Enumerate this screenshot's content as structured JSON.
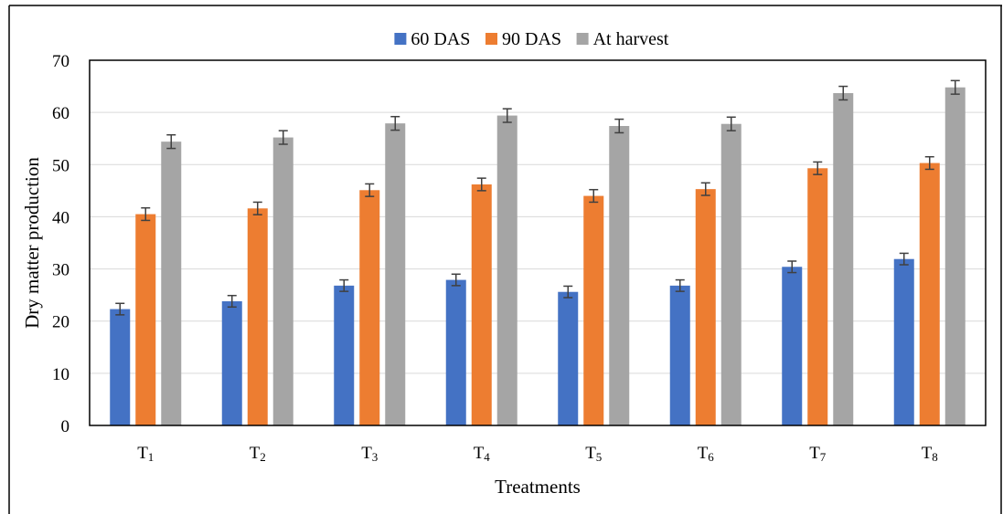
{
  "chart_data": {
    "type": "bar",
    "title": "",
    "xlabel": "Treatments",
    "ylabel": "Dry matter production",
    "ylim": [
      0,
      70
    ],
    "yticks": [
      0,
      10,
      20,
      30,
      40,
      50,
      60,
      70
    ],
    "grid": true,
    "legend_position": "top",
    "categories": [
      {
        "base": "T",
        "sub": "1"
      },
      {
        "base": "T",
        "sub": "2"
      },
      {
        "base": "T",
        "sub": "3"
      },
      {
        "base": "T",
        "sub": "4"
      },
      {
        "base": "T",
        "sub": "5"
      },
      {
        "base": "T",
        "sub": "6"
      },
      {
        "base": "T",
        "sub": "7"
      },
      {
        "base": "T",
        "sub": "8"
      }
    ],
    "series": [
      {
        "name": "60 DAS",
        "color": "#4472C4",
        "values": [
          22.3,
          23.8,
          26.8,
          27.9,
          25.6,
          26.8,
          30.4,
          31.9
        ],
        "errors": [
          1.1,
          1.1,
          1.1,
          1.1,
          1.1,
          1.1,
          1.1,
          1.1
        ]
      },
      {
        "name": "90 DAS",
        "color": "#ED7D31",
        "values": [
          40.5,
          41.6,
          45.1,
          46.2,
          44.0,
          45.3,
          49.3,
          50.3
        ],
        "errors": [
          1.2,
          1.2,
          1.2,
          1.2,
          1.2,
          1.2,
          1.2,
          1.2
        ]
      },
      {
        "name": "At harvest",
        "color": "#A5A5A5",
        "values": [
          54.4,
          55.2,
          57.9,
          59.4,
          57.4,
          57.8,
          63.7,
          64.8
        ],
        "errors": [
          1.3,
          1.3,
          1.3,
          1.3,
          1.3,
          1.3,
          1.3,
          1.3
        ]
      }
    ]
  }
}
